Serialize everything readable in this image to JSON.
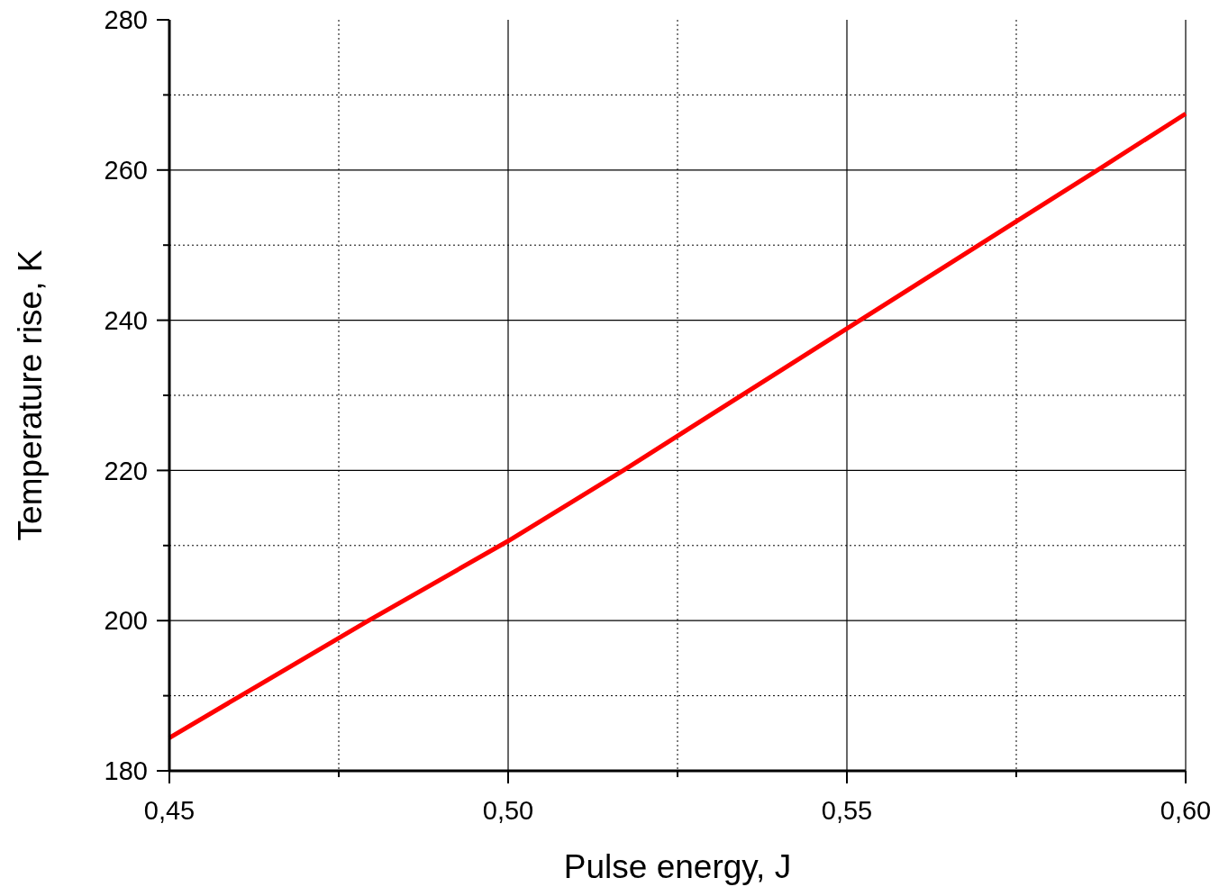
{
  "chart_data": {
    "type": "line",
    "xlabel": "Pulse energy, J",
    "ylabel": "Temperature rise, K",
    "x": [
      0.45,
      0.479,
      0.5,
      0.517,
      0.55,
      0.587,
      0.6
    ],
    "series": [
      {
        "color": "#ff0000",
        "values": [
          184.4,
          199.8,
          210.6,
          220,
          238.9,
          260,
          267.5
        ]
      }
    ],
    "xlim": [
      0.45,
      0.6
    ],
    "xticks": [
      {
        "value": 0.45,
        "label": "0,45"
      },
      {
        "value": 0.475,
        "label": null
      },
      {
        "value": 0.5,
        "label": "0,50"
      },
      {
        "value": 0.525,
        "label": null
      },
      {
        "value": 0.55,
        "label": "0,55"
      },
      {
        "value": 0.575,
        "label": null
      },
      {
        "value": 0.6,
        "label": "0,60"
      }
    ],
    "ylim": [
      180,
      280
    ],
    "yticks": [
      180,
      {
        "value": 190,
        "label": null
      },
      200,
      {
        "value": 210,
        "label": null
      },
      220,
      {
        "value": 230,
        "label": null
      },
      240,
      {
        "value": 250,
        "label": null
      },
      260,
      {
        "value": 270,
        "label": null
      },
      280
    ],
    "grid": true,
    "marker": "none",
    "line_style": "solid"
  }
}
